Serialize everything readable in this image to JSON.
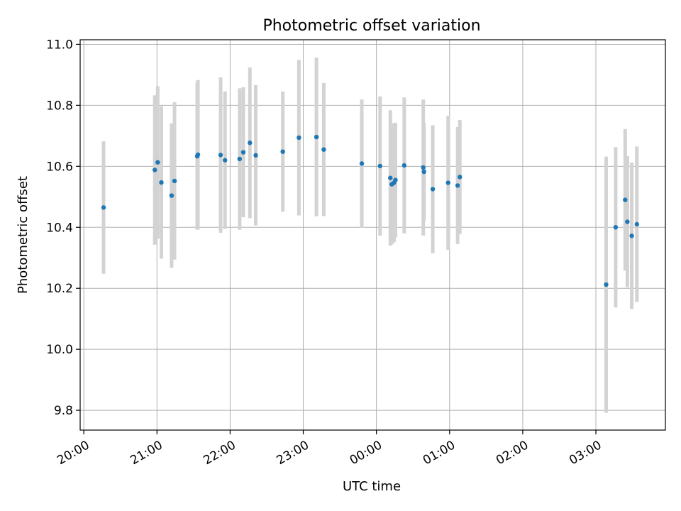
{
  "chart_data": {
    "type": "scatter",
    "title": "Photometric offset variation",
    "xlabel": "UTC time",
    "ylabel": "Photometric offset",
    "x_unit": "hours",
    "xlim": [
      19.95,
      27.95
    ],
    "ylim": [
      9.735,
      11.015
    ],
    "grid": true,
    "legend": "none",
    "colors": {
      "point": "#1f77b4",
      "errorbar": "#d3d3d3",
      "grid": "#b0b0b0"
    },
    "x_ticks": [
      {
        "value": 20,
        "label": "20:00"
      },
      {
        "value": 21,
        "label": "21:00"
      },
      {
        "value": 22,
        "label": "22:00"
      },
      {
        "value": 23,
        "label": "23:00"
      },
      {
        "value": 24,
        "label": "00:00"
      },
      {
        "value": 25,
        "label": "01:00"
      },
      {
        "value": 26,
        "label": "02:00"
      },
      {
        "value": 27,
        "label": "03:00"
      }
    ],
    "y_ticks": [
      {
        "value": 9.8,
        "label": "9.8"
      },
      {
        "value": 10.0,
        "label": "10.0"
      },
      {
        "value": 10.2,
        "label": "10.2"
      },
      {
        "value": 10.4,
        "label": "10.4"
      },
      {
        "value": 10.6,
        "label": "10.6"
      },
      {
        "value": 10.8,
        "label": "10.8"
      },
      {
        "value": 11.0,
        "label": "11.0"
      }
    ],
    "points": [
      {
        "x": 20.27,
        "y": 10.465,
        "err": 0.217
      },
      {
        "x": 20.97,
        "y": 10.588,
        "err": 0.245
      },
      {
        "x": 21.01,
        "y": 10.613,
        "err": 0.25
      },
      {
        "x": 21.06,
        "y": 10.547,
        "err": 0.25
      },
      {
        "x": 21.2,
        "y": 10.504,
        "err": 0.237
      },
      {
        "x": 21.24,
        "y": 10.552,
        "err": 0.258
      },
      {
        "x": 21.55,
        "y": 10.633,
        "err": 0.241
      },
      {
        "x": 21.56,
        "y": 10.638,
        "err": 0.245
      },
      {
        "x": 21.87,
        "y": 10.637,
        "err": 0.255
      },
      {
        "x": 21.93,
        "y": 10.62,
        "err": 0.225
      },
      {
        "x": 22.13,
        "y": 10.624,
        "err": 0.232
      },
      {
        "x": 22.18,
        "y": 10.646,
        "err": 0.213
      },
      {
        "x": 22.27,
        "y": 10.677,
        "err": 0.247
      },
      {
        "x": 22.35,
        "y": 10.636,
        "err": 0.23
      },
      {
        "x": 22.72,
        "y": 10.648,
        "err": 0.197
      },
      {
        "x": 22.94,
        "y": 10.694,
        "err": 0.255
      },
      {
        "x": 23.18,
        "y": 10.696,
        "err": 0.26
      },
      {
        "x": 23.28,
        "y": 10.655,
        "err": 0.218
      },
      {
        "x": 23.8,
        "y": 10.609,
        "err": 0.21
      },
      {
        "x": 24.05,
        "y": 10.601,
        "err": 0.228
      },
      {
        "x": 24.19,
        "y": 10.562,
        "err": 0.222
      },
      {
        "x": 24.21,
        "y": 10.541,
        "err": 0.197
      },
      {
        "x": 24.24,
        "y": 10.546,
        "err": 0.195
      },
      {
        "x": 24.26,
        "y": 10.555,
        "err": 0.188
      },
      {
        "x": 24.38,
        "y": 10.603,
        "err": 0.223
      },
      {
        "x": 24.64,
        "y": 10.596,
        "err": 0.223
      },
      {
        "x": 24.65,
        "y": 10.582,
        "err": 0.16
      },
      {
        "x": 24.77,
        "y": 10.525,
        "err": 0.21
      },
      {
        "x": 24.98,
        "y": 10.546,
        "err": 0.22
      },
      {
        "x": 25.11,
        "y": 10.537,
        "err": 0.192
      },
      {
        "x": 25.14,
        "y": 10.565,
        "err": 0.187
      },
      {
        "x": 27.14,
        "y": 10.212,
        "err": 0.42
      },
      {
        "x": 27.27,
        "y": 10.4,
        "err": 0.263
      },
      {
        "x": 27.4,
        "y": 10.49,
        "err": 0.232
      },
      {
        "x": 27.43,
        "y": 10.418,
        "err": 0.215
      },
      {
        "x": 27.49,
        "y": 10.372,
        "err": 0.24
      },
      {
        "x": 27.56,
        "y": 10.41,
        "err": 0.255
      }
    ]
  }
}
